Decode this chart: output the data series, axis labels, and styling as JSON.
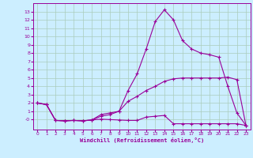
{
  "background_color": "#cceeff",
  "grid_color": "#aaccbb",
  "line_color": "#990099",
  "xlabel": "Windchill (Refroidissement éolien,°C)",
  "xlim": [
    -0.5,
    23.5
  ],
  "ylim": [
    -1.2,
    14.0
  ],
  "xticks": [
    0,
    1,
    2,
    3,
    4,
    5,
    6,
    7,
    8,
    9,
    10,
    11,
    12,
    13,
    14,
    15,
    16,
    17,
    18,
    19,
    20,
    21,
    22,
    23
  ],
  "yticks": [
    0,
    1,
    2,
    3,
    4,
    5,
    6,
    7,
    8,
    9,
    10,
    11,
    12,
    13
  ],
  "ytick_labels": [
    "-0",
    "1",
    "2",
    "3",
    "4",
    "5",
    "6",
    "7",
    "8",
    "9",
    "10",
    "11",
    "12",
    "13"
  ],
  "curve_peak_x": [
    0,
    1,
    2,
    3,
    4,
    5,
    6,
    7,
    8,
    9,
    10,
    11,
    12,
    13,
    14,
    15,
    16,
    17,
    18,
    19,
    20,
    21,
    22,
    23
  ],
  "curve_peak_y": [
    2.0,
    1.8,
    -0.1,
    -0.15,
    -0.1,
    -0.15,
    -0.05,
    0.6,
    0.8,
    1.0,
    3.5,
    5.5,
    8.5,
    11.8,
    13.2,
    12.0,
    9.5,
    8.5,
    8.0,
    7.8,
    7.5,
    4.0,
    0.8,
    -0.7
  ],
  "curve_mid_x": [
    0,
    1,
    2,
    3,
    4,
    5,
    6,
    7,
    8,
    9,
    10,
    11,
    12,
    13,
    14,
    15,
    16,
    17,
    18,
    19,
    20,
    21,
    22,
    23
  ],
  "curve_mid_y": [
    2.0,
    1.8,
    -0.1,
    -0.15,
    -0.1,
    -0.15,
    -0.05,
    0.4,
    0.6,
    1.0,
    2.2,
    2.8,
    3.5,
    4.0,
    4.6,
    4.9,
    5.0,
    5.0,
    5.0,
    5.0,
    5.0,
    5.1,
    4.8,
    -0.7
  ],
  "curve_flat_x": [
    0,
    1,
    2,
    3,
    4,
    5,
    6,
    7,
    8,
    9,
    10,
    11,
    12,
    13,
    14,
    15,
    16,
    17,
    18,
    19,
    20,
    21,
    22,
    23
  ],
  "curve_flat_y": [
    2.0,
    1.8,
    -0.1,
    -0.15,
    -0.1,
    -0.15,
    -0.05,
    0.05,
    0.0,
    -0.05,
    -0.1,
    -0.1,
    0.3,
    0.4,
    0.5,
    -0.5,
    -0.5,
    -0.5,
    -0.5,
    -0.5,
    -0.5,
    -0.5,
    -0.5,
    -0.7
  ]
}
